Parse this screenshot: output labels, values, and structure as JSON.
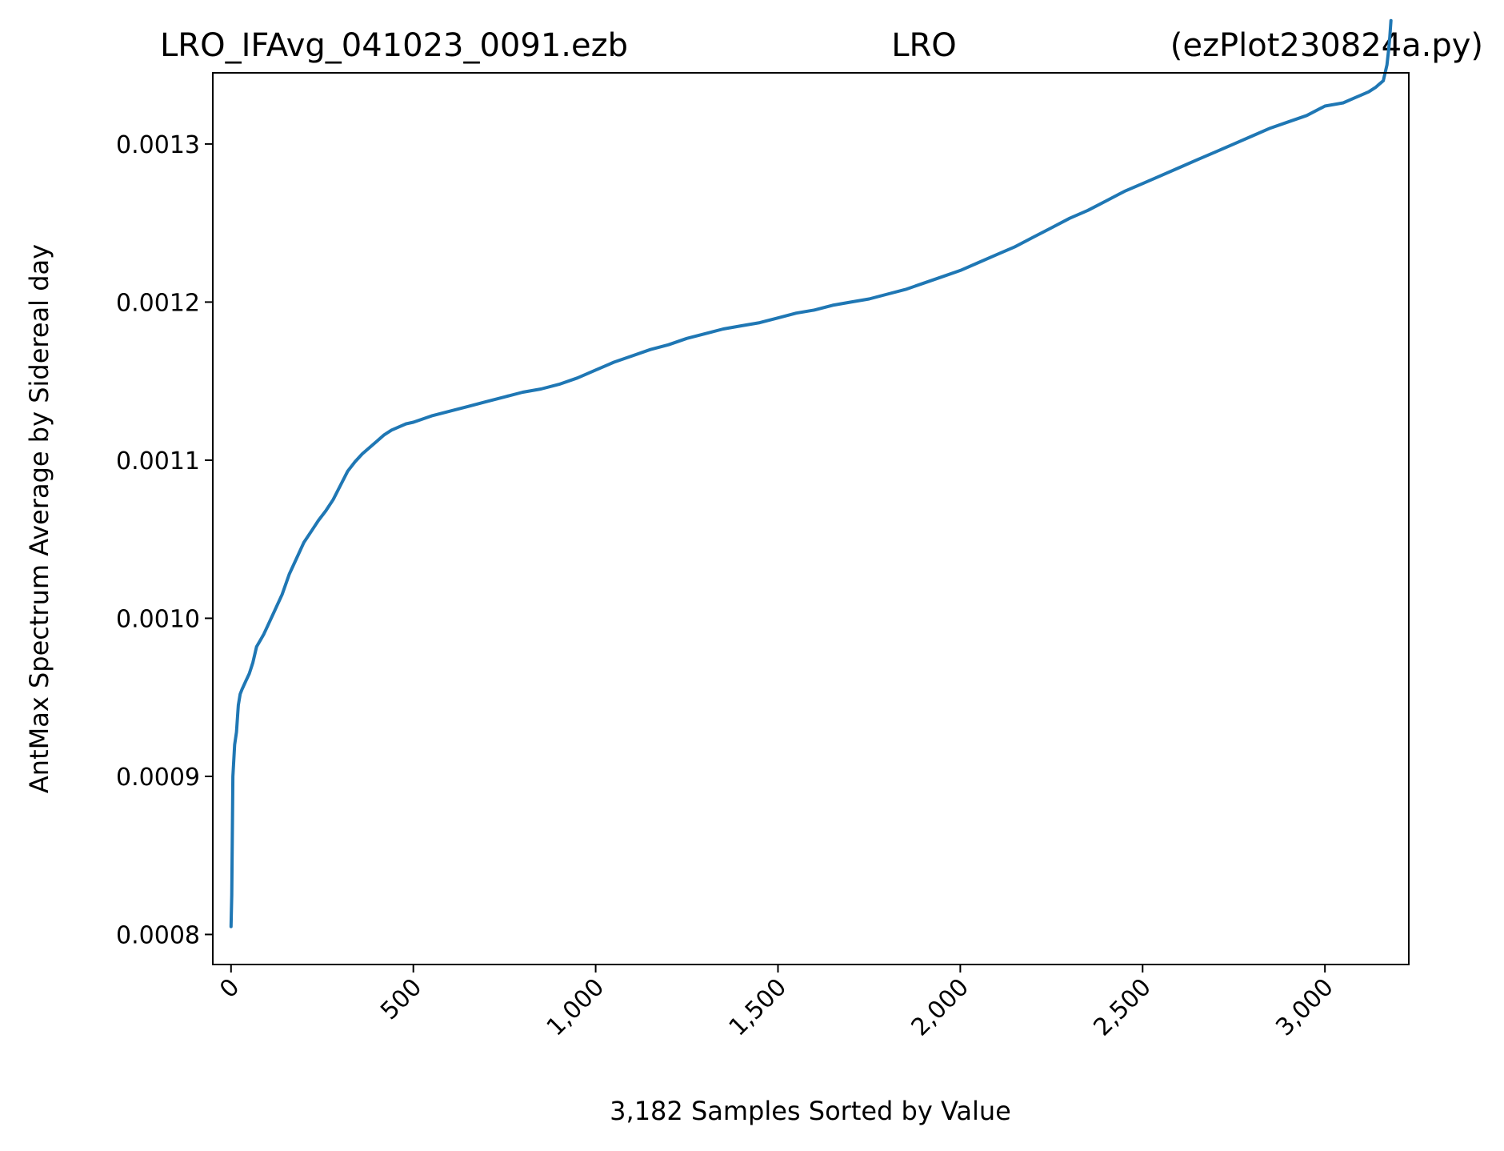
{
  "chart_data": {
    "type": "line",
    "title_left": "LRO_IFAvg_041023_0091.ezb",
    "title_center": "LRO",
    "title_right": "(ezPlot230824a.py)",
    "xlabel": "3,182 Samples Sorted by Value",
    "ylabel": "AntMax Spectrum Average by Sidereal day",
    "xlim": [
      -50,
      3230
    ],
    "ylim": [
      0.000781,
      0.001345
    ],
    "x_ticks": [
      0,
      500,
      1000,
      1500,
      2000,
      2500,
      3000
    ],
    "x_tick_labels": [
      "0",
      "500",
      "1,000",
      "1,500",
      "2,000",
      "2,500",
      "3,000"
    ],
    "y_ticks": [
      0.0008,
      0.0009,
      0.001,
      0.0011,
      0.0012,
      0.0013
    ],
    "y_tick_labels": [
      "0.0008",
      "0.0009",
      "0.0010",
      "0.0011",
      "0.0012",
      "0.0013"
    ],
    "grid": false,
    "color": "#1f77b4",
    "series": [
      {
        "x": [
          0,
          2,
          5,
          10,
          15,
          20,
          25,
          30,
          40,
          50,
          60,
          70,
          80,
          90,
          100,
          120,
          140,
          160,
          180,
          200,
          220,
          240,
          260,
          280,
          300,
          320,
          340,
          360,
          380,
          400,
          420,
          440,
          460,
          480,
          500,
          550,
          600,
          650,
          700,
          750,
          800,
          850,
          900,
          950,
          1000,
          1050,
          1100,
          1150,
          1200,
          1250,
          1300,
          1350,
          1400,
          1450,
          1500,
          1550,
          1600,
          1650,
          1700,
          1750,
          1800,
          1850,
          1900,
          1950,
          2000,
          2050,
          2100,
          2150,
          2200,
          2250,
          2300,
          2350,
          2400,
          2450,
          2500,
          2550,
          2600,
          2650,
          2700,
          2750,
          2800,
          2850,
          2900,
          2950,
          3000,
          3050,
          3080,
          3100,
          3120,
          3140,
          3150,
          3160,
          3170,
          3175,
          3178,
          3181
        ],
        "y": [
          0.000805,
          0.000825,
          0.0009,
          0.00092,
          0.000928,
          0.000945,
          0.000952,
          0.000955,
          0.00096,
          0.000965,
          0.000972,
          0.000982,
          0.000986,
          0.00099,
          0.000995,
          0.001005,
          0.001015,
          0.001028,
          0.001038,
          0.001048,
          0.001055,
          0.001062,
          0.001068,
          0.001075,
          0.001084,
          0.001093,
          0.001099,
          0.001104,
          0.001108,
          0.001112,
          0.001116,
          0.001119,
          0.001121,
          0.001123,
          0.001124,
          0.001128,
          0.001131,
          0.001134,
          0.001137,
          0.00114,
          0.001143,
          0.001145,
          0.001148,
          0.001152,
          0.001157,
          0.001162,
          0.001166,
          0.00117,
          0.001173,
          0.001177,
          0.00118,
          0.001183,
          0.001185,
          0.001187,
          0.00119,
          0.001193,
          0.001195,
          0.001198,
          0.0012,
          0.001202,
          0.001205,
          0.001208,
          0.001212,
          0.001216,
          0.00122,
          0.001225,
          0.00123,
          0.001235,
          0.001241,
          0.001247,
          0.001253,
          0.001258,
          0.001264,
          0.00127,
          0.001275,
          0.00128,
          0.001285,
          0.00129,
          0.001295,
          0.0013,
          0.001305,
          0.00131,
          0.001314,
          0.001318,
          0.001324,
          0.001326,
          0.001329,
          0.001331,
          0.001333,
          0.001336,
          0.001338,
          0.00134,
          0.00135,
          0.00136,
          0.001368,
          0.001378
        ]
      }
    ]
  }
}
